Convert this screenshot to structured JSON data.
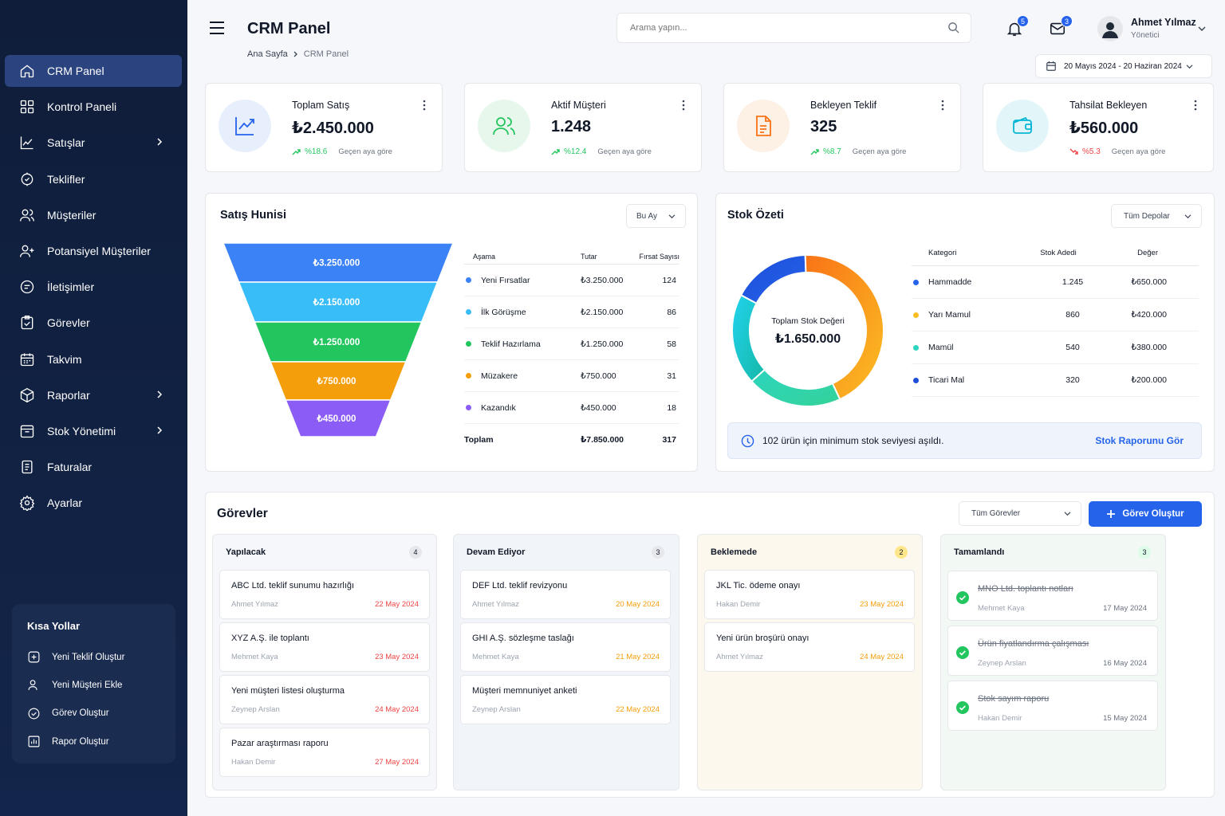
{
  "app": {
    "title": "CRM Panel"
  },
  "breadcrumb": {
    "home": "Ana Sayfa",
    "current": "CRM Panel"
  },
  "search": {
    "placeholder": "Arama yapın..."
  },
  "notifications": {
    "count": "5"
  },
  "messages": {
    "count": "3"
  },
  "user": {
    "name": "Ahmet Yılmaz",
    "role": "Yönetici"
  },
  "date_range": "20 Mayıs 2024 - 20 Haziran 2024",
  "sidebar": {
    "items": [
      {
        "label": "CRM Panel",
        "icon": "home-icon"
      },
      {
        "label": "Kontrol Paneli",
        "icon": "grid-icon"
      },
      {
        "label": "Satışlar",
        "icon": "chart-icon"
      },
      {
        "label": "Teklifler",
        "icon": "offer-icon"
      },
      {
        "label": "Müşteriler",
        "icon": "users-icon"
      },
      {
        "label": "Potansiyel Müşteriler",
        "icon": "user-plus-icon"
      },
      {
        "label": "İletişimler",
        "icon": "chat-icon"
      },
      {
        "label": "Görevler",
        "icon": "clipboard-icon"
      },
      {
        "label": "Takvim",
        "icon": "calendar-icon"
      },
      {
        "label": "Raporlar",
        "icon": "box-icon"
      },
      {
        "label": "Stok Yönetimi",
        "icon": "stock-icon"
      },
      {
        "label": "Faturalar",
        "icon": "invoice-icon"
      },
      {
        "label": "Ayarlar",
        "icon": "gear-icon"
      }
    ]
  },
  "shortcuts": {
    "title": "Kısa Yollar",
    "items": [
      "Yeni Teklif Oluştur",
      "Yeni Müşteri Ekle",
      "Görev Oluştur",
      "Rapor Oluştur"
    ]
  },
  "kpis": [
    {
      "title": "Toplam Satış",
      "value": "₺2.450.000",
      "change": "%18.6",
      "direction": "up",
      "compare": "Geçen aya göre",
      "color": "#2563eb"
    },
    {
      "title": "Aktif Müşteri",
      "value": "1.248",
      "change": "%12.4",
      "direction": "up",
      "compare": "Geçen aya göre",
      "color": "#22c55e"
    },
    {
      "title": "Bekleyen Teklif",
      "value": "325",
      "change": "%8.7",
      "direction": "up",
      "compare": "Geçen aya göre",
      "color": "#f97316"
    },
    {
      "title": "Tahsilat Bekleyen",
      "value": "₺560.000",
      "change": "%5.3",
      "direction": "down",
      "compare": "Geçen aya göre",
      "color": "#06b6d4"
    }
  ],
  "funnel": {
    "title": "Satış Hunisi",
    "filter": "Bu Ay",
    "headers": [
      "Aşama",
      "Tutar",
      "Fırsat Sayısı"
    ],
    "stages": [
      {
        "name": "Yeni Fırsatlar",
        "amount": "₺3.250.000",
        "count": "124",
        "color": "#3b82f6"
      },
      {
        "name": "İlk Görüşme",
        "amount": "₺2.150.000",
        "count": "86",
        "color": "#38bdf8"
      },
      {
        "name": "Teklif Hazırlama",
        "amount": "₺1.250.000",
        "count": "58",
        "color": "#22c55e"
      },
      {
        "name": "Müzakere",
        "amount": "₺750.000",
        "count": "31",
        "color": "#f59e0b"
      },
      {
        "name": "Kazandık",
        "amount": "₺450.000",
        "count": "18",
        "color": "#8b5cf6"
      }
    ],
    "total": {
      "label": "Toplam",
      "amount": "₺7.850.000",
      "count": "317"
    }
  },
  "stock": {
    "title": "Stok Özeti",
    "filter": "Tüm Depolar",
    "center_label": "Toplam Stok Değeri",
    "center_value": "₺1.650.000",
    "headers": [
      "Kategori",
      "Stok Adedi",
      "Değer"
    ],
    "rows": [
      {
        "name": "Hammadde",
        "qty": "1.245",
        "value": "₺650.000",
        "color": "#2563eb"
      },
      {
        "name": "Yarı Mamul",
        "qty": "860",
        "value": "₺420.000",
        "color": "#fbbf24"
      },
      {
        "name": "Mamül",
        "qty": "540",
        "value": "₺380.000",
        "color": "#2dd4bf"
      },
      {
        "name": "Ticari Mal",
        "qty": "320",
        "value": "₺200.000",
        "color": "#1d4ed8"
      }
    ],
    "alert": "102 ürün için minimum stok seviyesi aşıldı.",
    "alert_link": "Stok Raporunu Gör"
  },
  "tasks": {
    "title": "Görevler",
    "filter": "Tüm Görevler",
    "create": "Görev Oluştur",
    "columns": [
      {
        "name": "Yapılacak",
        "count": "4",
        "items": [
          {
            "title": "ABC Ltd. teklif sunumu hazırlığı",
            "assignee": "Ahmet Yılmaz",
            "date": "22 May 2024"
          },
          {
            "title": "XYZ A.Ş. ile toplantı",
            "assignee": "Mehmet Kaya",
            "date": "23 May 2024"
          },
          {
            "title": "Yeni müşteri listesi oluşturma",
            "assignee": "Zeynep Arslan",
            "date": "24 May 2024"
          },
          {
            "title": "Pazar araştırması raporu",
            "assignee": "Hakan Demir",
            "date": "27 May 2024"
          }
        ]
      },
      {
        "name": "Devam Ediyor",
        "count": "3",
        "items": [
          {
            "title": "DEF Ltd. teklif revizyonu",
            "assignee": "Ahmet Yılmaz",
            "date": "20 May 2024"
          },
          {
            "title": "GHI A.Ş. sözleşme taslağı",
            "assignee": "Mehmet Kaya",
            "date": "21 May 2024"
          },
          {
            "title": "Müşteri memnuniyet anketi",
            "assignee": "Zeynep Arslan",
            "date": "22 May 2024"
          }
        ]
      },
      {
        "name": "Beklemede",
        "count": "2",
        "items": [
          {
            "title": "JKL Tic. ödeme onayı",
            "assignee": "Hakan Demir",
            "date": "23 May 2024"
          },
          {
            "title": "Yeni ürün broşürü onayı",
            "assignee": "Ahmet Yılmaz",
            "date": "24 May 2024"
          }
        ]
      },
      {
        "name": "Tamamlandı",
        "count": "3",
        "items": [
          {
            "title": "MNO Ltd. toplantı notları",
            "assignee": "Mehmet Kaya",
            "date": "17 May 2024"
          },
          {
            "title": "Ürün fiyatlandırma çalışması",
            "assignee": "Zeynep Arslan",
            "date": "16 May 2024"
          },
          {
            "title": "Stok sayım raporu",
            "assignee": "Hakan Demir",
            "date": "15 May 2024"
          }
        ]
      }
    ]
  }
}
